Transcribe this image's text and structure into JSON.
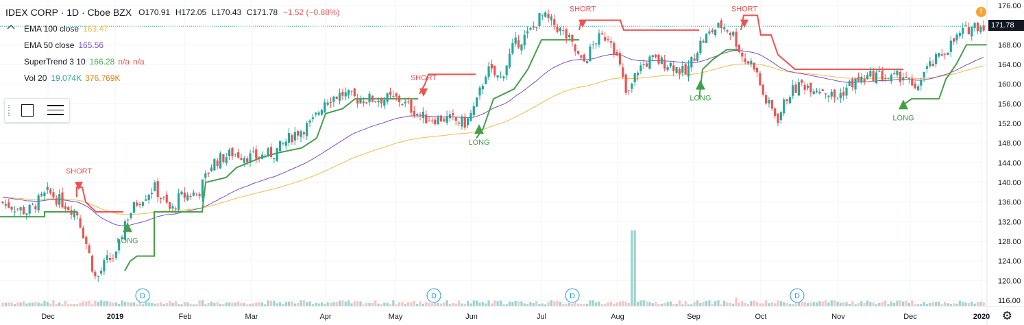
{
  "header": {
    "symbol": "IDEX CORP · 1D · Cboe BZX",
    "open": "O170.91",
    "high": "H172.05",
    "low": "L170.43",
    "close": "C171.78",
    "change": "−1.52 (−0.88%)",
    "change_color": "#ef5350"
  },
  "indicators": [
    {
      "name": "EMA 100 close",
      "value": "163.47",
      "color": "#f5b944"
    },
    {
      "name": "EMA 50 close",
      "value": "165.56",
      "color": "#7b4fc0"
    },
    {
      "name": "SuperTrend 3 10",
      "value": "166.28",
      "extra1": "n/a",
      "extra2": "n/a",
      "color": "#4caf50",
      "color2": "#ef5350"
    },
    {
      "name": "Vol 20",
      "value": "19.074K",
      "value2": "376.769K",
      "color": "#26a69a",
      "color2": "#f57c00"
    }
  ],
  "last_price": "171.78",
  "alert_icon": "!",
  "collapse_icon": "chevron-up-icon",
  "colors": {
    "up": "#26a69a",
    "down": "#ef5350",
    "supertrend_up": "#43a047",
    "supertrend_down": "#f05050",
    "ema100": "#f5b944",
    "ema50": "#7b4fc0",
    "volume": "#80cbc4"
  },
  "chart_data": {
    "type": "candlestick",
    "ylim": [
      114,
      178
    ],
    "y_ticks": [
      "116.00",
      "120.00",
      "124.00",
      "128.00",
      "132.00",
      "136.00",
      "140.00",
      "144.00",
      "148.00",
      "152.00",
      "156.00",
      "160.00",
      "164.00",
      "168.00",
      "172.00",
      "176.00"
    ],
    "x_ticks": [
      "Dec",
      "2019",
      "Feb",
      "Mar",
      "Apr",
      "May",
      "Jun",
      "Jul",
      "Aug",
      "Sep",
      "Oct",
      "Nov",
      "Dec",
      "2020"
    ],
    "dividend_marker": "D",
    "signals": [
      {
        "type": "SHORT",
        "price": 139
      },
      {
        "type": "LONG",
        "price": 131
      },
      {
        "type": "SHORT",
        "price": 158
      },
      {
        "type": "LONG",
        "price": 151
      },
      {
        "type": "SHORT",
        "price": 172
      },
      {
        "type": "LONG",
        "price": 160
      },
      {
        "type": "SHORT",
        "price": 172
      },
      {
        "type": "LONG",
        "price": 156
      }
    ]
  }
}
